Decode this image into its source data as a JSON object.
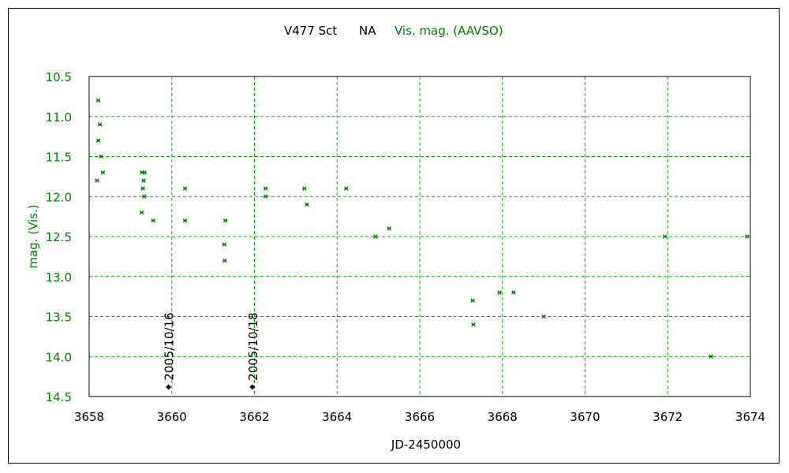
{
  "chart_data": {
    "type": "scatter",
    "title_parts": {
      "star": "V477 Sct",
      "type": "NA",
      "series": "Vis. mag. (AAVSO)"
    },
    "xlabel": "JD-2450000",
    "ylabel": "mag. (Vis.)",
    "xlim": [
      3658,
      3674
    ],
    "ylim": [
      10.5,
      14.5
    ],
    "y_inverted": true,
    "grid": true,
    "x_ticks": [
      "3658",
      "3660",
      "3662",
      "3664",
      "3666",
      "3668",
      "3670",
      "3672",
      "3674"
    ],
    "y_ticks": [
      "10.5",
      "11.0",
      "11.5",
      "12.0",
      "12.5",
      "13.0",
      "13.5",
      "14.0",
      "14.5"
    ],
    "colors": {
      "series": "#008000",
      "grid": "#00c000",
      "axes": "#000000",
      "markers_ref": "#000000"
    },
    "series": [
      {
        "name": "Vis. mag. (AAVSO)",
        "marker": "x",
        "points": [
          [
            3658.22,
            10.8
          ],
          [
            3658.26,
            11.1
          ],
          [
            3658.22,
            11.3
          ],
          [
            3658.29,
            11.5
          ],
          [
            3658.33,
            11.7
          ],
          [
            3658.19,
            11.8
          ],
          [
            3659.28,
            11.7
          ],
          [
            3659.34,
            11.7
          ],
          [
            3659.32,
            11.8
          ],
          [
            3659.3,
            11.9
          ],
          [
            3659.33,
            12.0
          ],
          [
            3659.27,
            12.2
          ],
          [
            3659.55,
            12.3
          ],
          [
            3660.32,
            11.9
          ],
          [
            3660.32,
            12.3
          ],
          [
            3661.27,
            12.6
          ],
          [
            3661.3,
            12.3
          ],
          [
            3661.28,
            12.8
          ],
          [
            3662.27,
            11.9
          ],
          [
            3662.27,
            12.0
          ],
          [
            3663.21,
            11.9
          ],
          [
            3663.27,
            12.1
          ],
          [
            3664.22,
            11.9
          ],
          [
            3664.93,
            12.5
          ],
          [
            3665.26,
            12.4
          ],
          [
            3667.28,
            13.3
          ],
          [
            3667.3,
            13.6
          ],
          [
            3667.93,
            13.2
          ],
          [
            3668.27,
            13.2
          ],
          [
            3669.0,
            13.5
          ],
          [
            3671.93,
            12.5
          ],
          [
            3673.05,
            14.0
          ],
          [
            3673.92,
            12.5
          ]
        ]
      }
    ],
    "annotations": [
      {
        "label": "2005/10/16",
        "x": 3659.92,
        "y": 14.38
      },
      {
        "label": "2005/10/18",
        "x": 3661.95,
        "y": 14.38
      }
    ]
  }
}
